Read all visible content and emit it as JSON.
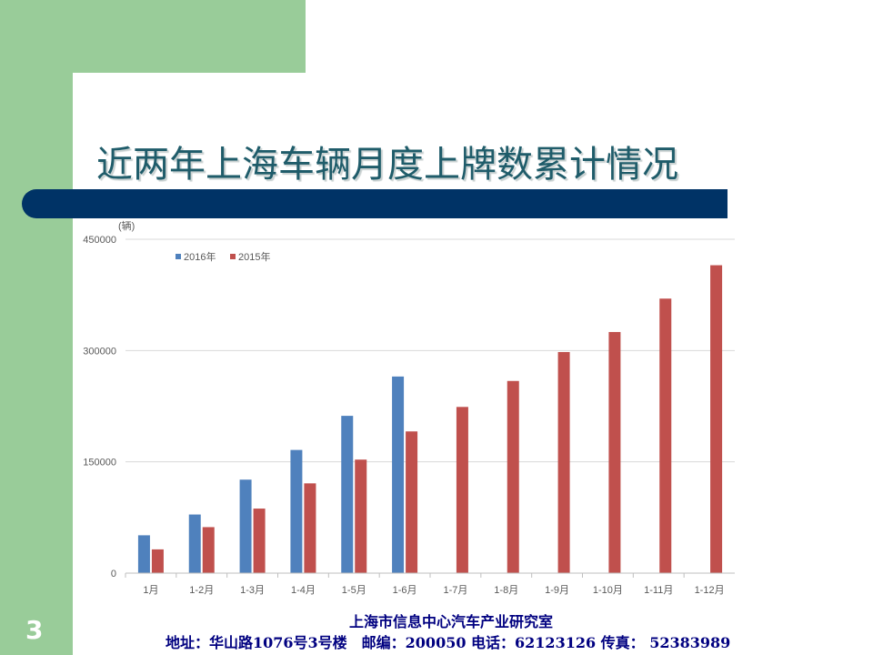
{
  "slide": {
    "title": "近两年上海车辆月度上牌数累计情况",
    "page_number": "3",
    "footer_line1": "上海市信息中心汽车产业研究室",
    "footer_line2": "地址：华山路1076号3号楼　邮编：200050  电话：62123126  传真：  52383989"
  },
  "colors": {
    "sidebar_green": "#99cc99",
    "navy_band": "#003366",
    "series_2016": "#4f81bd",
    "series_2015": "#c0504d"
  },
  "chart_data": {
    "type": "bar",
    "unit_label": "(辆)",
    "categories": [
      "1月",
      "1-2月",
      "1-3月",
      "1-4月",
      "1-5月",
      "1-6月",
      "1-7月",
      "1-8月",
      "1-9月",
      "1-10月",
      "1-11月",
      "1-12月"
    ],
    "series": [
      {
        "name": "2016年",
        "values": [
          51000,
          79000,
          126000,
          166000,
          212000,
          265000,
          null,
          null,
          null,
          null,
          null,
          null
        ]
      },
      {
        "name": "2015年",
        "values": [
          32000,
          62000,
          87000,
          121000,
          153000,
          191000,
          224000,
          259000,
          298000,
          325000,
          370000,
          415000
        ]
      }
    ],
    "ylim": [
      0,
      450000
    ],
    "yticks": [
      "0",
      "150000",
      "300000",
      "450000"
    ],
    "grid": true,
    "legend_position": "top-left"
  }
}
